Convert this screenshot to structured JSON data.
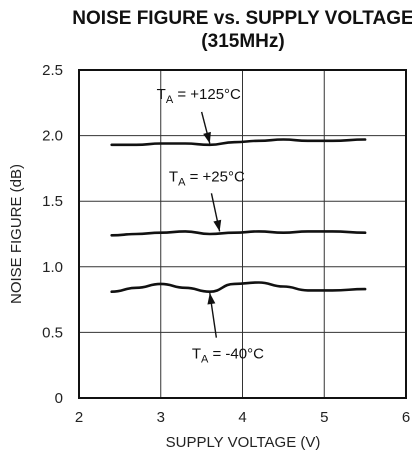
{
  "chart_data": {
    "type": "line",
    "title": "NOISE FIGURE vs. SUPPLY VOLTAGE",
    "subtitle": "(315MHz)",
    "xlabel": "SUPPLY VOLTAGE (V)",
    "ylabel": "NOISE FIGURE (dB)",
    "xlim": [
      2,
      6
    ],
    "ylim": [
      0,
      2.5
    ],
    "xticks": [
      2,
      3,
      4,
      5,
      6
    ],
    "yticks": [
      "0",
      "0.5",
      "1.0",
      "1.5",
      "2.0",
      "2.5"
    ],
    "grid": true,
    "series": [
      {
        "name": "TA = +125°C",
        "x": [
          2.4,
          2.7,
          3.0,
          3.3,
          3.6,
          3.9,
          4.2,
          4.5,
          4.8,
          5.1,
          5.5
        ],
        "y": [
          1.93,
          1.93,
          1.94,
          1.94,
          1.93,
          1.95,
          1.96,
          1.97,
          1.96,
          1.96,
          1.97
        ]
      },
      {
        "name": "TA = +25°C",
        "x": [
          2.4,
          2.7,
          3.0,
          3.3,
          3.6,
          3.9,
          4.2,
          4.5,
          4.8,
          5.1,
          5.5
        ],
        "y": [
          1.24,
          1.25,
          1.26,
          1.27,
          1.25,
          1.26,
          1.27,
          1.26,
          1.27,
          1.27,
          1.26
        ]
      },
      {
        "name": "TA = -40°C",
        "x": [
          2.4,
          2.7,
          3.0,
          3.3,
          3.6,
          3.9,
          4.2,
          4.5,
          4.8,
          5.1,
          5.5
        ],
        "y": [
          0.81,
          0.84,
          0.87,
          0.84,
          0.81,
          0.87,
          0.88,
          0.85,
          0.82,
          0.82,
          0.83
        ]
      }
    ],
    "annotations": [
      {
        "series": 0,
        "label_main": "T",
        "label_sub": "A",
        "label_rest": " = +125°C",
        "text_at": [
          2.95,
          2.28
        ],
        "arrow_from": [
          3.5,
          2.18
        ],
        "arrow_to": [
          3.6,
          1.94
        ]
      },
      {
        "series": 1,
        "label_main": "T",
        "label_sub": "A",
        "label_rest": " = +25°C",
        "text_at": [
          3.1,
          1.65
        ],
        "arrow_from": [
          3.62,
          1.56
        ],
        "arrow_to": [
          3.72,
          1.27
        ]
      },
      {
        "series": 2,
        "label_main": "T",
        "label_sub": "A",
        "label_rest": " = -40°C",
        "text_at": [
          3.38,
          0.3
        ],
        "arrow_from": [
          3.68,
          0.46
        ],
        "arrow_to": [
          3.6,
          0.8
        ]
      }
    ]
  }
}
